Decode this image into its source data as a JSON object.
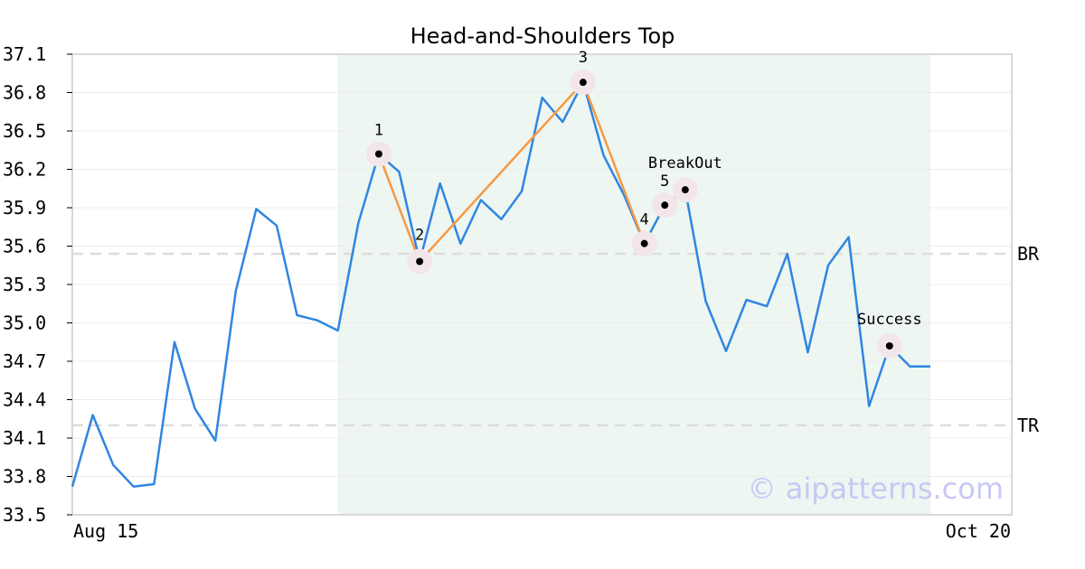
{
  "chart_data": {
    "type": "line",
    "title": "Head-and-Shoulders Top",
    "xlabel": "",
    "ylabel": "",
    "ylim": [
      33.5,
      37.1
    ],
    "y_ticks": [
      "33.5",
      "33.8",
      "34.1",
      "34.4",
      "34.7",
      "35.0",
      "35.3",
      "35.6",
      "35.9",
      "36.2",
      "36.5",
      "36.8",
      "37.1"
    ],
    "x_tick_labels": [
      "Aug 15",
      "Oct 20"
    ],
    "grid": true,
    "series": [
      {
        "values": [
          33.72,
          34.28,
          33.89,
          33.72,
          33.74,
          34.85,
          34.33,
          34.08,
          35.25,
          35.89,
          35.76,
          35.06,
          35.02,
          34.94,
          35.78,
          36.32,
          36.18,
          35.48,
          36.09,
          35.62,
          35.96,
          35.81,
          36.03,
          36.76,
          36.57,
          36.88,
          36.31,
          36.0,
          35.62,
          35.92,
          36.04,
          35.17,
          34.78,
          35.18,
          35.13,
          35.54,
          34.77,
          35.45,
          35.67,
          34.35,
          34.82,
          34.66,
          34.66
        ],
        "color": "#2f86e0"
      }
    ],
    "shaded_region": {
      "from_index": 13,
      "to_index": 42,
      "color": "#eef6f2"
    },
    "levels": [
      {
        "label": "BR",
        "value": 35.54
      },
      {
        "label": "TR",
        "value": 34.2
      }
    ],
    "pattern_points": [
      {
        "label": "1",
        "index": 15,
        "value": 36.32
      },
      {
        "label": "2",
        "index": 17,
        "value": 35.48
      },
      {
        "label": "3",
        "index": 25,
        "value": 36.88
      },
      {
        "label": "4",
        "index": 28,
        "value": 35.62
      },
      {
        "label": "5",
        "index": 29,
        "value": 35.92
      }
    ],
    "pattern_line_color": "#f59a45",
    "breakout": {
      "label": "BreakOut",
      "index": 30,
      "value": 36.04
    },
    "success": {
      "label": "Success",
      "index": 40,
      "value": 34.82
    },
    "watermark": "© aipatterns.com"
  }
}
